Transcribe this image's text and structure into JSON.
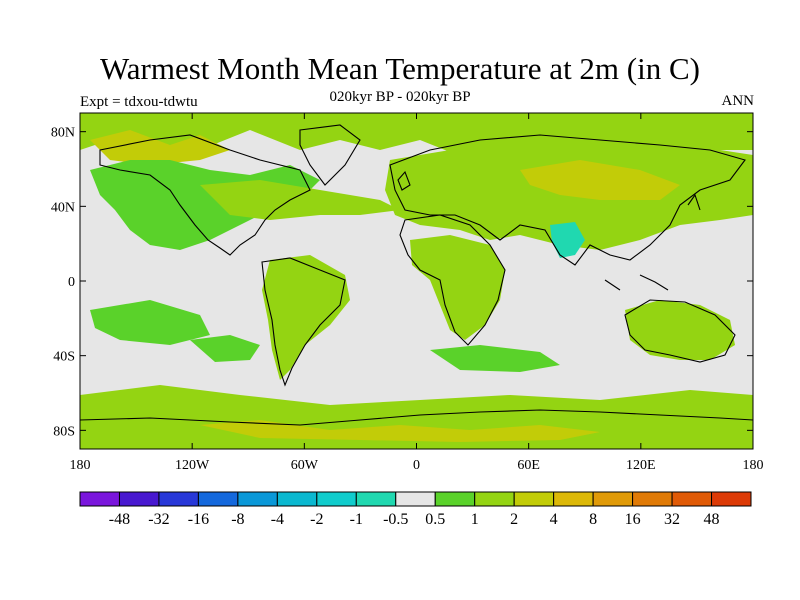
{
  "map": {
    "title": "Warmest Month Mean Temperature at 2m (in C)",
    "subtitle": "020kyr BP - 020kyr BP",
    "left_label": "Expt = tdxou-tdwtu",
    "right_label": "ANN",
    "projection": "cylindrical-equidistant",
    "lon_range": [
      -180,
      180
    ],
    "lat_range": [
      -90,
      90
    ],
    "lat_ticks": [
      {
        "lat": 80,
        "label": "80N"
      },
      {
        "lat": 40,
        "label": "40N"
      },
      {
        "lat": 0,
        "label": "0"
      },
      {
        "lat": -40,
        "label": "40S"
      },
      {
        "lat": -80,
        "label": "80S"
      }
    ],
    "lon_ticks": [
      {
        "lon": -180,
        "label": "180"
      },
      {
        "lon": -120,
        "label": "120W"
      },
      {
        "lon": -60,
        "label": "60W"
      },
      {
        "lon": 0,
        "label": "0"
      },
      {
        "lon": 60,
        "label": "60E"
      },
      {
        "lon": 120,
        "label": "120E"
      },
      {
        "lon": 180,
        "label": "180"
      }
    ],
    "background_color": "#e6e6e6"
  },
  "colorbar": {
    "colors": [
      "#7a16dc",
      "#4818d0",
      "#2838d8",
      "#1468dc",
      "#0a98d8",
      "#0ab8d0",
      "#10cccc",
      "#20d8b0",
      "#e6e6e6",
      "#5ad22a",
      "#94d412",
      "#c2cc08",
      "#dcb808",
      "#e09a08",
      "#e07a06",
      "#e05a06",
      "#dc3a06"
    ],
    "labels": [
      "-48",
      "-32",
      "-16",
      "-8",
      "-4",
      "-2",
      "-1",
      "-0.5",
      "0.5",
      "1",
      "2",
      "4",
      "8",
      "16",
      "32",
      "48"
    ]
  }
}
